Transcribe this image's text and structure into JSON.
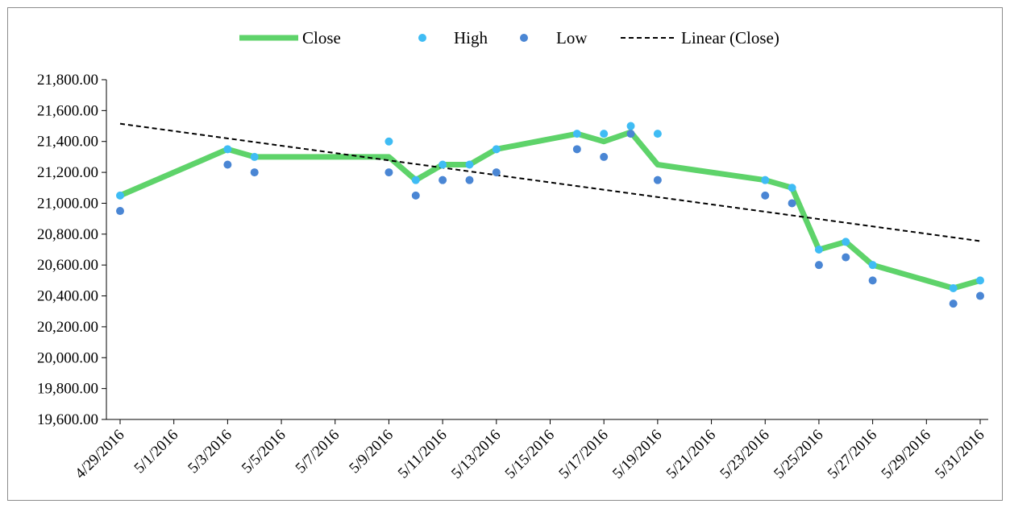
{
  "chart_data": {
    "type": "line",
    "title": "",
    "xlabel": "",
    "ylabel": "",
    "ylim": [
      19600,
      21800
    ],
    "y_ticks": [
      "19,600.00",
      "19,800.00",
      "20,000.00",
      "20,200.00",
      "20,400.00",
      "20,600.00",
      "20,800.00",
      "21,000.00",
      "21,200.00",
      "21,400.00",
      "21,600.00",
      "21,800.00"
    ],
    "x_tick_labels": [
      "4/29/2016",
      "5/1/2016",
      "5/3/2016",
      "5/5/2016",
      "5/7/2016",
      "5/9/2016",
      "5/11/2016",
      "5/13/2016",
      "5/15/2016",
      "5/17/2016",
      "5/19/2016",
      "5/21/2016",
      "5/23/2016",
      "5/25/2016",
      "5/27/2016",
      "5/29/2016",
      "5/31/2016"
    ],
    "x_range": [
      "4/29/2016",
      "5/31/2016"
    ],
    "x_dates": [
      "4/29/2016",
      "5/3/2016",
      "5/4/2016",
      "5/9/2016",
      "5/10/2016",
      "5/11/2016",
      "5/12/2016",
      "5/13/2016",
      "5/16/2016",
      "5/17/2016",
      "5/18/2016",
      "5/19/2016",
      "5/23/2016",
      "5/24/2016",
      "5/25/2016",
      "5/26/2016",
      "5/27/2016",
      "5/30/2016",
      "5/31/2016"
    ],
    "series": [
      {
        "name": "Close",
        "kind": "line",
        "color": "#5ed36a",
        "values": [
          21050,
          21350,
          21300,
          21300,
          21150,
          21250,
          21250,
          21350,
          21450,
          21400,
          21460,
          21250,
          21150,
          21100,
          20700,
          20750,
          20600,
          20450,
          20500
        ]
      },
      {
        "name": "High",
        "kind": "marker",
        "color": "#3fbcf4",
        "values": [
          21050,
          21350,
          21300,
          21400,
          21150,
          21250,
          21250,
          21350,
          21450,
          21450,
          21500,
          21450,
          21150,
          21100,
          20700,
          20750,
          20600,
          20450,
          20500
        ]
      },
      {
        "name": "Low",
        "kind": "marker",
        "color": "#4a86d4",
        "values": [
          20950,
          21250,
          21200,
          21200,
          21050,
          21150,
          21150,
          21200,
          21350,
          21300,
          21450,
          21150,
          21050,
          21000,
          20600,
          20650,
          20500,
          20350,
          20400
        ]
      },
      {
        "name": "Linear (Close)",
        "kind": "trendline",
        "color": "#000000",
        "values": [
          21515,
          20755
        ]
      }
    ],
    "legend_position": "top",
    "grid": false
  }
}
